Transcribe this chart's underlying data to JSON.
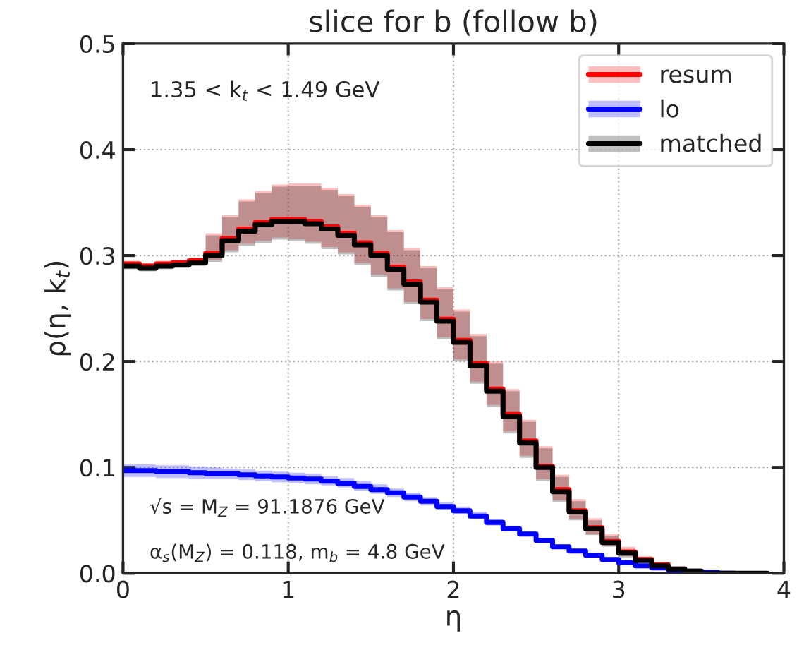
{
  "chart_data": {
    "type": "step",
    "title": "slice for b (follow b)",
    "xlabel": "η",
    "ylabel": "ρ(η, k$_{t}$)",
    "annotations": [
      "1.35 < k$_{t}$ < 1.49 GeV",
      "√s = M$_{Z}$ = 91.1876 GeV",
      "α$_{s}$(M$_{Z}$) = 0.118, m$_{b}$ = 4.8 GeV"
    ],
    "x": [
      0,
      0.1,
      0.2,
      0.3,
      0.4,
      0.5,
      0.6,
      0.7,
      0.8,
      0.9,
      1.0,
      1.1,
      1.2,
      1.3,
      1.4,
      1.5,
      1.6,
      1.7,
      1.8,
      1.9,
      2.0,
      2.1,
      2.2,
      2.3,
      2.4,
      2.5,
      2.6,
      2.7,
      2.8,
      2.9,
      3.0,
      3.1,
      3.2,
      3.3,
      3.4,
      3.5,
      3.6,
      3.7,
      3.8,
      3.9
    ],
    "series": [
      {
        "name": "resum",
        "color": "#ff0000",
        "values": [
          0.292,
          0.29,
          0.292,
          0.293,
          0.295,
          0.302,
          0.316,
          0.325,
          0.331,
          0.334,
          0.334,
          0.332,
          0.327,
          0.321,
          0.312,
          0.302,
          0.289,
          0.275,
          0.258,
          0.24,
          0.22,
          0.198,
          0.174,
          0.15,
          0.125,
          0.101,
          0.079,
          0.059,
          0.043,
          0.03,
          0.02,
          0.013,
          0.008,
          0.004,
          0.002,
          null,
          null,
          null,
          null,
          null
        ],
        "lower": [
          0.289,
          0.287,
          0.289,
          0.29,
          0.292,
          0.296,
          0.305,
          0.311,
          0.314,
          0.317,
          0.316,
          0.313,
          0.308,
          0.303,
          0.293,
          0.282,
          0.269,
          0.256,
          0.24,
          0.223,
          0.202,
          0.181,
          0.159,
          0.134,
          0.111,
          0.089,
          0.069,
          0.051,
          0.037,
          0.026,
          0.016,
          0.01,
          0.006,
          0.003,
          0.001,
          0,
          0,
          0,
          0,
          0
        ],
        "upper": [
          0.295,
          0.293,
          0.295,
          0.296,
          0.298,
          0.321,
          0.338,
          0.353,
          0.361,
          0.367,
          0.368,
          0.368,
          0.364,
          0.358,
          0.348,
          0.338,
          0.324,
          0.307,
          0.29,
          0.27,
          0.249,
          0.226,
          0.2,
          0.174,
          0.145,
          0.12,
          0.093,
          0.07,
          0.052,
          0.037,
          0.025,
          0.016,
          0.01,
          0.006,
          0.003,
          0,
          0,
          0,
          0,
          0
        ]
      },
      {
        "name": "lo",
        "color": "#0000ff",
        "values": [
          0.097,
          0.097,
          0.096,
          0.096,
          0.095,
          0.094,
          0.094,
          0.093,
          0.092,
          0.091,
          0.09,
          0.089,
          0.087,
          0.085,
          0.082,
          0.079,
          0.076,
          0.072,
          0.068,
          0.063,
          0.059,
          0.054,
          0.048,
          0.042,
          0.037,
          0.031,
          0.025,
          0.021,
          0.017,
          0.013,
          0.01,
          0.007,
          0.005,
          0.003,
          0.002,
          0.001,
          0,
          0,
          null,
          null
        ],
        "lower": [
          0.091,
          0.091,
          0.09,
          0.09,
          0.089,
          0.089,
          0.089,
          0.088,
          0.087,
          0.086,
          0.085,
          0.084,
          0.083,
          0.081,
          0.078,
          0.075,
          0.072,
          0.068,
          0.064,
          0.06,
          0.056,
          0.051,
          0.045,
          0.04,
          0.035,
          0.029,
          0.023,
          0.019,
          0.015,
          0.012,
          0.009,
          0.006,
          0.004,
          0.002,
          0.001,
          0,
          0,
          0,
          0,
          0
        ],
        "upper": [
          0.103,
          0.103,
          0.102,
          0.102,
          0.101,
          0.1,
          0.099,
          0.098,
          0.097,
          0.096,
          0.095,
          0.094,
          0.092,
          0.09,
          0.087,
          0.084,
          0.08,
          0.076,
          0.072,
          0.067,
          0.063,
          0.058,
          0.051,
          0.045,
          0.04,
          0.033,
          0.027,
          0.023,
          0.019,
          0.015,
          0.011,
          0.008,
          0.006,
          0.004,
          0.003,
          0.002,
          0,
          0,
          0,
          0
        ]
      },
      {
        "name": "matched",
        "color": "#000000",
        "values": [
          0.29,
          0.288,
          0.29,
          0.291,
          0.293,
          0.3,
          0.314,
          0.323,
          0.329,
          0.332,
          0.332,
          0.33,
          0.325,
          0.319,
          0.31,
          0.3,
          0.287,
          0.273,
          0.256,
          0.238,
          0.218,
          0.196,
          0.172,
          0.148,
          0.123,
          0.1,
          0.077,
          0.058,
          0.042,
          0.029,
          0.019,
          0.012,
          0.007,
          0.004,
          0.002,
          0,
          0,
          0,
          0,
          0
        ],
        "lower": [
          0.287,
          0.285,
          0.287,
          0.288,
          0.29,
          0.294,
          0.303,
          0.309,
          0.312,
          0.315,
          0.314,
          0.311,
          0.306,
          0.301,
          0.291,
          0.28,
          0.267,
          0.254,
          0.238,
          0.221,
          0.2,
          0.179,
          0.157,
          0.132,
          0.109,
          0.087,
          0.067,
          0.05,
          0.036,
          0.025,
          0.015,
          0.01,
          0.005,
          0.003,
          0.001,
          0,
          0,
          0,
          0,
          0
        ],
        "upper": [
          0.293,
          0.291,
          0.293,
          0.294,
          0.296,
          0.319,
          0.336,
          0.351,
          0.359,
          0.365,
          0.366,
          0.366,
          0.362,
          0.356,
          0.346,
          0.336,
          0.322,
          0.305,
          0.288,
          0.268,
          0.247,
          0.224,
          0.198,
          0.172,
          0.143,
          0.118,
          0.091,
          0.068,
          0.05,
          0.035,
          0.023,
          0.015,
          0.009,
          0.005,
          0.003,
          0,
          0,
          0,
          0,
          0
        ]
      }
    ],
    "xlim": [
      0,
      4
    ],
    "xticks": [
      0,
      1,
      2,
      3,
      4
    ],
    "ylim": [
      0,
      0.5
    ],
    "yticks": [
      {
        "value": 0,
        "label": "0.0"
      },
      0.1,
      0.2,
      0.3,
      0.4,
      0.5
    ],
    "grid": true,
    "legend": "top right"
  }
}
